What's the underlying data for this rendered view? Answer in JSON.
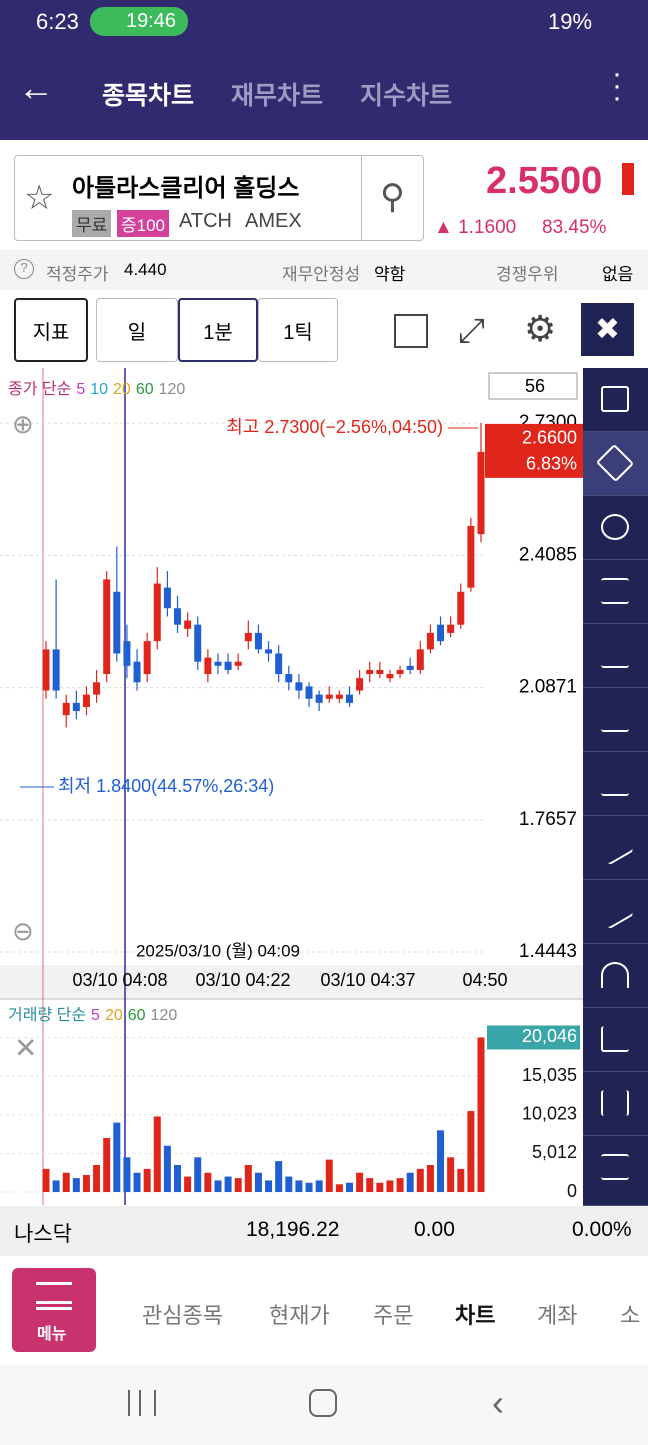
{
  "status_bar": {
    "time": "6:23",
    "call": "19:46",
    "battery": "19%"
  },
  "header": {
    "tabs": [
      "종목차트",
      "재무차트",
      "지수차트"
    ]
  },
  "stock": {
    "name": "아틀라스클리어 홀딩스",
    "tags": [
      "무료",
      "증100"
    ],
    "ticker": "ATCH",
    "exchange": "AMEX",
    "price": "2.5500",
    "change": "▲ 1.1600",
    "change_pct": "83.45%"
  },
  "info": {
    "items": [
      {
        "label": "적정주가",
        "value": "4.440"
      },
      {
        "label": "재무안정성",
        "value": "약함"
      },
      {
        "label": "경쟁우위",
        "value": "없음"
      }
    ]
  },
  "toolbar": {
    "buttons": [
      "지표",
      "일",
      "1분",
      "1틱"
    ]
  },
  "chart_data": [
    {
      "type": "candlestick",
      "legend_title": "종가 단순",
      "ma": [
        {
          "name": "5",
          "color": "#c33bc3"
        },
        {
          "name": "10",
          "color": "#23a6c2"
        },
        {
          "name": "20",
          "color": "#e0a51f"
        },
        {
          "name": "60",
          "color": "#2a9a3a"
        },
        {
          "name": "120",
          "color": "#8a8a8a"
        }
      ],
      "count_box": "56",
      "up_color": "#e0261b",
      "down_color": "#1f5fd1",
      "open": [
        2.08,
        2.18,
        2.02,
        2.05,
        2.04,
        2.07,
        2.12,
        2.32,
        2.2,
        2.15,
        2.12,
        2.2,
        2.33,
        2.28,
        2.23,
        2.24,
        2.12,
        2.15,
        2.15,
        2.14,
        2.2,
        2.22,
        2.18,
        2.17,
        2.12,
        2.1,
        2.09,
        2.07,
        2.06,
        2.06,
        2.07,
        2.08,
        2.12,
        2.12,
        2.11,
        2.12,
        2.14,
        2.13,
        2.18,
        2.24,
        2.22,
        2.24,
        2.33,
        2.46
      ],
      "high": [
        2.2,
        2.35,
        2.07,
        2.08,
        2.09,
        2.13,
        2.37,
        2.43,
        2.24,
        2.18,
        2.22,
        2.38,
        2.37,
        2.31,
        2.27,
        2.26,
        2.18,
        2.17,
        2.17,
        2.17,
        2.25,
        2.24,
        2.2,
        2.19,
        2.14,
        2.12,
        2.1,
        2.08,
        2.09,
        2.08,
        2.09,
        2.13,
        2.15,
        2.15,
        2.13,
        2.14,
        2.16,
        2.2,
        2.24,
        2.26,
        2.26,
        2.34,
        2.5,
        2.73
      ],
      "low": [
        2.06,
        2.06,
        1.99,
        2.01,
        2.02,
        2.05,
        2.1,
        2.15,
        2.11,
        2.08,
        2.1,
        2.18,
        2.26,
        2.22,
        2.21,
        2.13,
        2.1,
        2.12,
        2.12,
        2.13,
        2.18,
        2.17,
        2.15,
        2.1,
        2.08,
        2.06,
        2.04,
        2.03,
        2.05,
        2.05,
        2.04,
        2.07,
        2.1,
        2.11,
        2.1,
        2.11,
        2.12,
        2.12,
        2.17,
        2.19,
        2.21,
        2.23,
        2.32,
        2.44
      ],
      "close": [
        2.18,
        2.08,
        2.05,
        2.03,
        2.07,
        2.1,
        2.35,
        2.17,
        2.14,
        2.1,
        2.2,
        2.34,
        2.28,
        2.24,
        2.25,
        2.15,
        2.16,
        2.14,
        2.13,
        2.15,
        2.22,
        2.18,
        2.17,
        2.12,
        2.1,
        2.08,
        2.06,
        2.05,
        2.07,
        2.07,
        2.05,
        2.11,
        2.13,
        2.13,
        2.12,
        2.13,
        2.13,
        2.18,
        2.22,
        2.2,
        2.24,
        2.32,
        2.48,
        2.66
      ],
      "ylim": [
        1.425,
        2.859
      ],
      "yticks": [
        1.4443,
        1.7657,
        2.0871,
        2.4085,
        {
          "value": 2.73,
          "label": "2.7300"
        }
      ],
      "high_label": "최고 2.7300(−2.56%,04:50)",
      "low_label": "최저 1.8400(44.57%,26:34)",
      "last_price": {
        "value": 2.66,
        "label": "2.6600",
        "change": "6.83%"
      },
      "crosshair_label": "2025/03/10 (월) 04:09",
      "x_labels": [
        "03/10 04:08",
        "03/10 04:22",
        "03/10 04:37",
        "04:50"
      ]
    },
    {
      "type": "bar",
      "legend_title": "거래량 단순",
      "ma": [
        {
          "name": "5",
          "color": "#c33bc3"
        },
        {
          "name": "20",
          "color": "#e0a51f"
        },
        {
          "name": "60",
          "color": "#2a9a3a"
        },
        {
          "name": "120",
          "color": "#8a8a8a"
        }
      ],
      "values": [
        3000,
        1500,
        2500,
        1800,
        2200,
        3500,
        7000,
        9000,
        4500,
        2500,
        3000,
        9800,
        6000,
        3500,
        2000,
        4500,
        2500,
        1500,
        2000,
        1800,
        3500,
        2500,
        1500,
        4000,
        2000,
        1500,
        1200,
        1500,
        4200,
        1000,
        1200,
        2500,
        1800,
        1200,
        1500,
        1800,
        2500,
        3000,
        3500,
        8000,
        4500,
        3000,
        10500,
        20046
      ],
      "ylim": [
        0,
        24000
      ],
      "yticks": [
        0,
        {
          "value": 5012,
          "label": "5,012"
        },
        {
          "value": 10023,
          "label": "10,023"
        },
        {
          "value": 15035,
          "label": "15,035"
        },
        {
          "value": 20046,
          "label": "20,046"
        }
      ]
    }
  ],
  "index_bar": {
    "name": "나스닥",
    "value": "18,196.22",
    "change": "0.00",
    "change_pct": "0.00%"
  },
  "bottom_nav": {
    "menu": "메뉴",
    "items": [
      "관심종목",
      "현재가",
      "주문",
      "차트",
      "계좌",
      "소"
    ]
  }
}
